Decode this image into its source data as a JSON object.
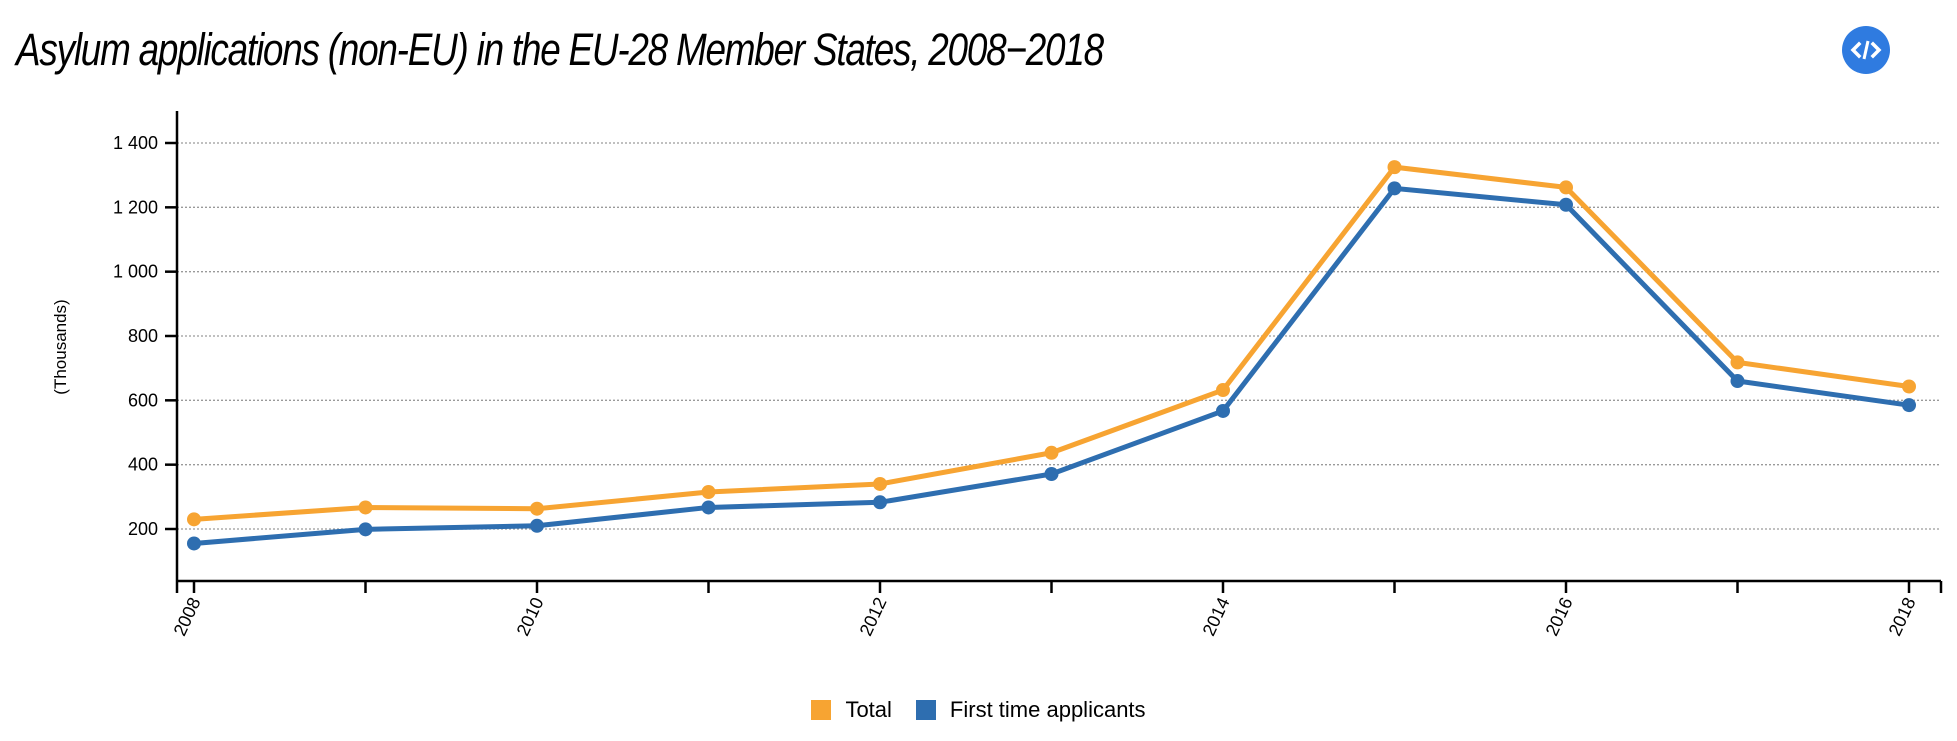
{
  "header": {
    "title": "Asylum applications (non-EU) in the EU-28 Member States, 2008−2018",
    "embed_button": {
      "icon": "code-icon",
      "label": "</>",
      "color": "#2F7BE0"
    }
  },
  "chart_data": {
    "type": "line",
    "title": "Asylum applications (non-EU) in the EU-28 Member States, 2008−2018",
    "xlabel": "",
    "ylabel": "(Thousands)",
    "x": [
      2008,
      2009,
      2010,
      2011,
      2012,
      2013,
      2014,
      2015,
      2016,
      2017,
      2018
    ],
    "x_tick_labels": [
      "2008",
      "2010",
      "2012",
      "2014",
      "2016",
      "2018"
    ],
    "x_minor_ticks": [
      2009,
      2011,
      2013,
      2015,
      2017
    ],
    "xlim": [
      2007.9,
      2018.2
    ],
    "y_ticks": [
      200,
      400,
      600,
      800,
      1000,
      1200,
      1400
    ],
    "y_tick_labels": [
      "200",
      "400",
      "600",
      "800",
      "1 000",
      "1 200",
      "1 400"
    ],
    "ylim": [
      40,
      1525
    ],
    "grid": "horizontal-dotted",
    "legend_position": "bottom-center",
    "series": [
      {
        "name": "Total",
        "color": "#F7A432",
        "values": [
          230,
          267,
          263,
          315,
          340,
          437,
          632,
          1325,
          1262,
          718,
          643
        ]
      },
      {
        "name": "First time applicants",
        "color": "#2E6EB0",
        "values": [
          155,
          199,
          210,
          267,
          283,
          371,
          567,
          1259,
          1208,
          660,
          585
        ]
      }
    ]
  },
  "legend": [
    {
      "label": "Total",
      "color": "#F7A432"
    },
    {
      "label": "First time applicants",
      "color": "#2E6EB0"
    }
  ]
}
